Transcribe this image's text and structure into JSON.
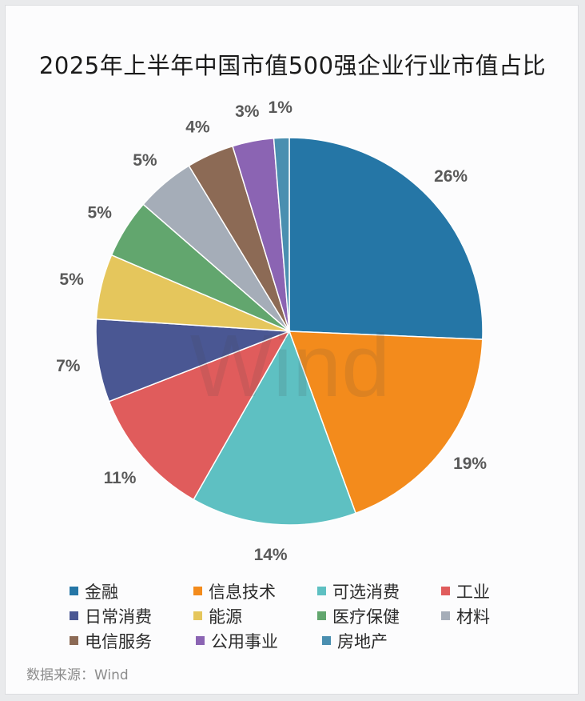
{
  "chart_data": {
    "type": "pie",
    "title": "2025年上半年中国市值500强企业行业市值占比",
    "slices": [
      {
        "name": "金融",
        "value": 26,
        "label": "26%",
        "color": "#2576a6"
      },
      {
        "name": "信息技术",
        "value": 19,
        "label": "19%",
        "color": "#f38b1c"
      },
      {
        "name": "可选消费",
        "value": 14,
        "label": "14%",
        "color": "#5ec0c2"
      },
      {
        "name": "工业",
        "value": 11,
        "label": "11%",
        "color": "#e05c5c"
      },
      {
        "name": "日常消费",
        "value": 7,
        "label": "7%",
        "color": "#4a5793"
      },
      {
        "name": "能源",
        "value": 5.5,
        "label": "5%",
        "color": "#e5c65c"
      },
      {
        "name": "医疗保健",
        "value": 5,
        "label": "5%",
        "color": "#62a66e"
      },
      {
        "name": "材料",
        "value": 5,
        "label": "5%",
        "color": "#a5adb8"
      },
      {
        "name": "电信服务",
        "value": 4,
        "label": "4%",
        "color": "#8c6a55"
      },
      {
        "name": "公用事业",
        "value": 3.5,
        "label": "3%",
        "color": "#8b64b3"
      },
      {
        "name": "房地产",
        "value": 1.3,
        "label": "1%",
        "color": "#4a8fb0"
      }
    ],
    "legend": {
      "placement": "bottom",
      "columns": 4
    }
  },
  "watermark": "Wind",
  "source": "数据来源：Wind"
}
